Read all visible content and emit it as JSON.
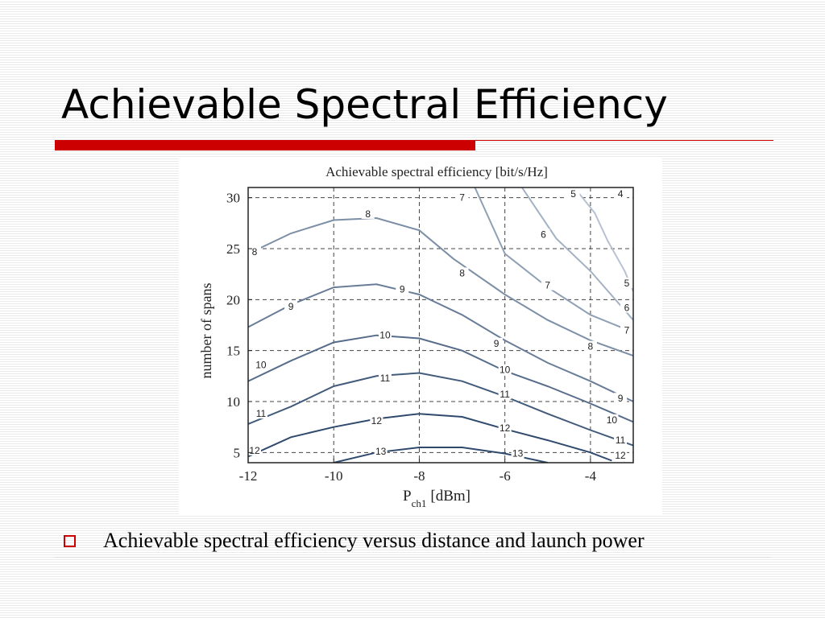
{
  "slide": {
    "title": "Achievable Spectral Efficiency",
    "bullet": "Achievable spectral efficiency versus distance and launch power"
  },
  "colors": {
    "accent": "#cc0000",
    "contour_dark": "#2f4a6d",
    "contour_light": "#c9d3df"
  },
  "chart_data": {
    "type": "contour",
    "title": "Achievable spectral efficiency [bit/s/Hz]",
    "xlabel": "P",
    "xlabel_sub": "ch1",
    "xlabel_unit": "[dBm]",
    "ylabel": "number of spans",
    "xlim": [
      -12,
      -3
    ],
    "ylim": [
      4,
      31
    ],
    "xticks": [
      -12,
      -10,
      -8,
      -6,
      -4
    ],
    "yticks": [
      5,
      10,
      15,
      20,
      25,
      30
    ],
    "grid": true,
    "contours": [
      {
        "level": 4,
        "labels": [
          [
            -3.3,
            30.5
          ]
        ],
        "points": [
          [
            -3.4,
            30.6
          ]
        ]
      },
      {
        "level": 5,
        "labels": [
          [
            -4.4,
            30.6
          ],
          [
            -3.1,
            21.6
          ]
        ],
        "points": [
          [
            -4.3,
            30.6
          ],
          [
            -3.9,
            28.5
          ],
          [
            -3.6,
            25.8
          ],
          [
            -3.2,
            22.8
          ],
          [
            -3.0,
            20.8
          ]
        ]
      },
      {
        "level": 6,
        "labels": [
          [
            -5.1,
            26.4
          ],
          [
            -3.1,
            19.2
          ]
        ],
        "points": [
          [
            -5.6,
            31.0
          ],
          [
            -4.8,
            26.0
          ],
          [
            -4.0,
            22.8
          ],
          [
            -3.0,
            18.0
          ]
        ]
      },
      {
        "level": 7,
        "labels": [
          [
            -7.0,
            30.0
          ],
          [
            -5.0,
            21.4
          ],
          [
            -3.0,
            17.0
          ]
        ],
        "points": [
          [
            -6.7,
            31.0
          ],
          [
            -6.0,
            24.5
          ],
          [
            -5.0,
            21.2
          ],
          [
            -4.0,
            18.5
          ],
          [
            -3.0,
            16.8
          ]
        ]
      },
      {
        "level": 8,
        "labels": [
          [
            -12.0,
            24.7
          ],
          [
            -9.2,
            28.4
          ],
          [
            -7.0,
            22.6
          ],
          [
            -4.0,
            15.4
          ]
        ],
        "points": [
          [
            -12.0,
            24.5
          ],
          [
            -11.0,
            26.5
          ],
          [
            -10.0,
            27.8
          ],
          [
            -9.0,
            28.0
          ],
          [
            -8.0,
            26.8
          ],
          [
            -7.2,
            24.0
          ],
          [
            -6.0,
            20.5
          ],
          [
            -5.0,
            18.0
          ],
          [
            -4.0,
            16.0
          ],
          [
            -3.0,
            14.5
          ]
        ]
      },
      {
        "level": 9,
        "labels": [
          [
            -11.0,
            19.3
          ],
          [
            -8.4,
            21.0
          ],
          [
            -6.2,
            15.7
          ],
          [
            -3.3,
            10.3
          ]
        ],
        "points": [
          [
            -12.0,
            17.3
          ],
          [
            -11.0,
            19.5
          ],
          [
            -10.0,
            21.2
          ],
          [
            -9.0,
            21.5
          ],
          [
            -8.0,
            20.5
          ],
          [
            -7.0,
            18.5
          ],
          [
            -6.0,
            16.0
          ],
          [
            -5.0,
            13.8
          ],
          [
            -4.0,
            12.0
          ],
          [
            -3.0,
            10.0
          ]
        ]
      },
      {
        "level": 10,
        "labels": [
          [
            -11.7,
            13.6
          ],
          [
            -8.8,
            16.5
          ],
          [
            -6.0,
            13.1
          ],
          [
            -3.5,
            8.2
          ]
        ],
        "points": [
          [
            -12.0,
            12.0
          ],
          [
            -11.0,
            14.0
          ],
          [
            -10.0,
            15.8
          ],
          [
            -9.0,
            16.5
          ],
          [
            -8.0,
            16.2
          ],
          [
            -7.0,
            15.0
          ],
          [
            -6.0,
            13.0
          ],
          [
            -5.0,
            11.5
          ],
          [
            -4.0,
            9.8
          ],
          [
            -3.0,
            8.0
          ]
        ]
      },
      {
        "level": 11,
        "labels": [
          [
            -11.7,
            8.8
          ],
          [
            -8.8,
            12.3
          ],
          [
            -6.0,
            10.7
          ],
          [
            -3.3,
            6.2
          ]
        ],
        "points": [
          [
            -12.0,
            7.8
          ],
          [
            -11.0,
            9.5
          ],
          [
            -10.0,
            11.5
          ],
          [
            -9.0,
            12.5
          ],
          [
            -8.0,
            12.8
          ],
          [
            -7.0,
            12.0
          ],
          [
            -6.0,
            10.5
          ],
          [
            -5.0,
            8.8
          ],
          [
            -4.0,
            7.2
          ],
          [
            -3.0,
            5.7
          ]
        ]
      },
      {
        "level": 12,
        "labels": [
          [
            -12.0,
            5.2
          ],
          [
            -9.0,
            8.1
          ],
          [
            -6.0,
            7.4
          ],
          [
            -3.3,
            4.7
          ]
        ],
        "points": [
          [
            -12.0,
            4.6
          ],
          [
            -11.0,
            6.5
          ],
          [
            -10.0,
            7.5
          ],
          [
            -9.0,
            8.3
          ],
          [
            -8.0,
            8.8
          ],
          [
            -7.0,
            8.5
          ],
          [
            -6.0,
            7.3
          ],
          [
            -5.0,
            6.2
          ],
          [
            -4.0,
            5.0
          ],
          [
            -3.5,
            4.2
          ]
        ]
      },
      {
        "level": 13,
        "labels": [
          [
            -8.9,
            5.1
          ],
          [
            -5.7,
            4.9
          ]
        ],
        "points": [
          [
            -10.0,
            4.0
          ],
          [
            -9.0,
            5.0
          ],
          [
            -8.0,
            5.5
          ],
          [
            -7.0,
            5.5
          ],
          [
            -6.0,
            4.9
          ],
          [
            -5.0,
            4.0
          ]
        ]
      }
    ]
  }
}
